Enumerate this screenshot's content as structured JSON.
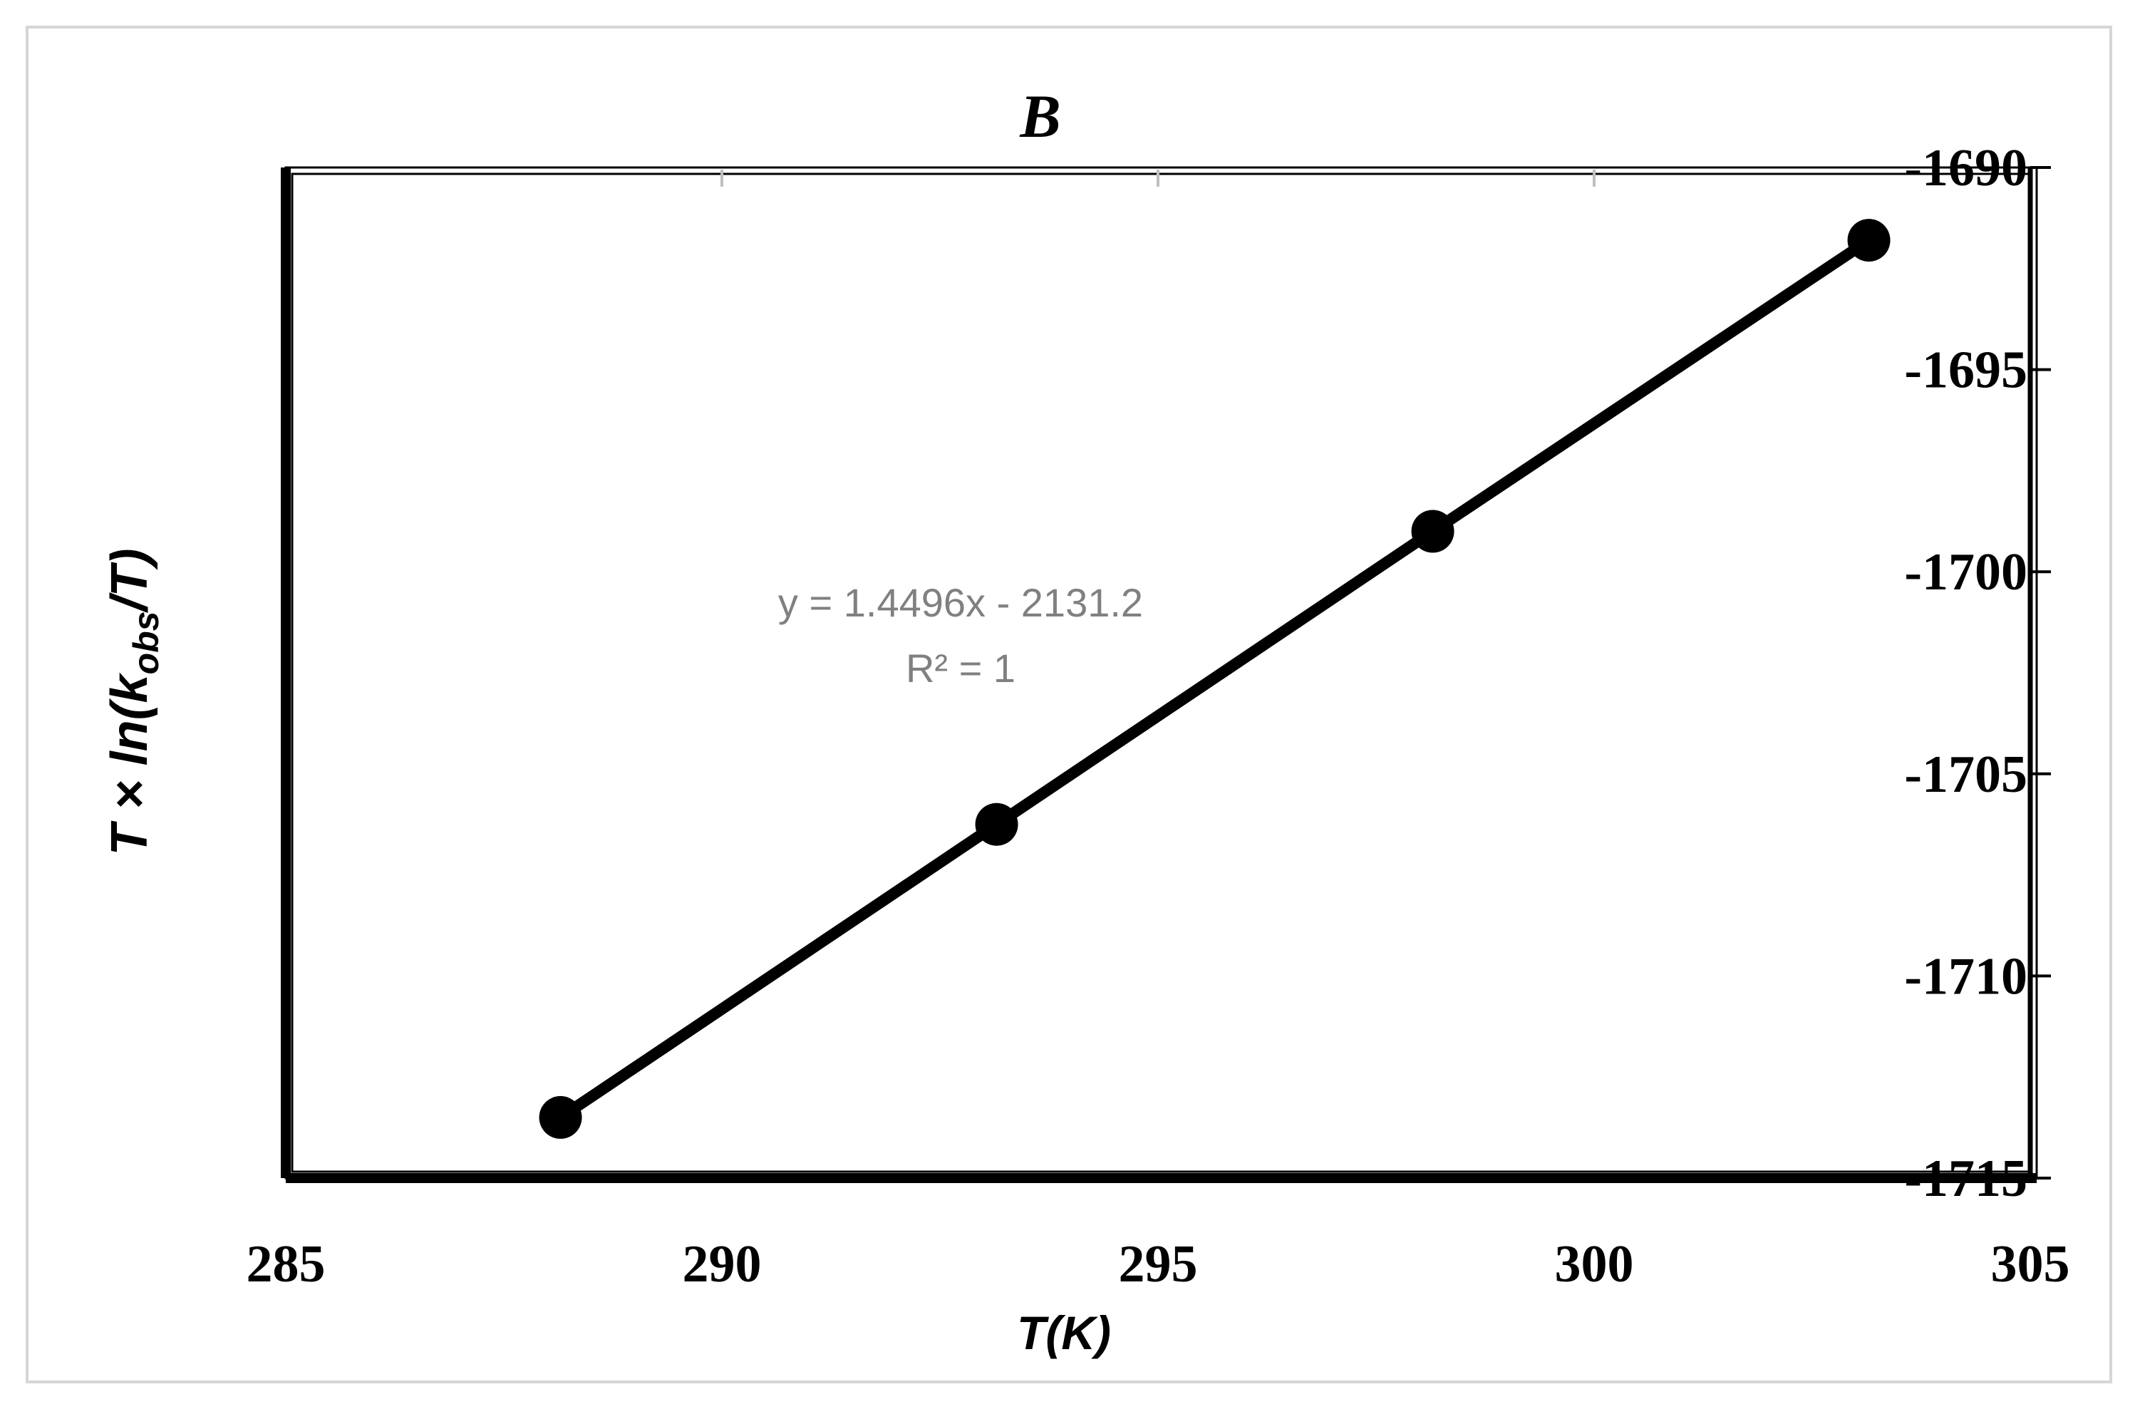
{
  "chart_data": {
    "type": "scatter",
    "title": "B",
    "xlabel": "T(K)",
    "ylabel": {
      "prefix": "T × ln(k",
      "sub": "obs",
      "suffix": "/T)"
    },
    "xlim": [
      285,
      305
    ],
    "ylim": [
      -1715,
      -1690
    ],
    "x_ticks": [
      285,
      290,
      295,
      300,
      305
    ],
    "y_ticks": [
      -1690,
      -1695,
      -1700,
      -1705,
      -1710,
      -1715
    ],
    "y_axis_side": "right",
    "grid": false,
    "legend": "none",
    "series": [
      {
        "x": [
          288.15,
          293.15,
          298.15,
          303.15
        ],
        "y": [
          -1713.5,
          -1706.25,
          -1699.0,
          -1691.8
        ],
        "line": true,
        "color": "#000000"
      }
    ],
    "annotation": {
      "equation": "y = 1.4496x - 2131.2",
      "r2": "R² = 1",
      "color": "#808080"
    }
  }
}
